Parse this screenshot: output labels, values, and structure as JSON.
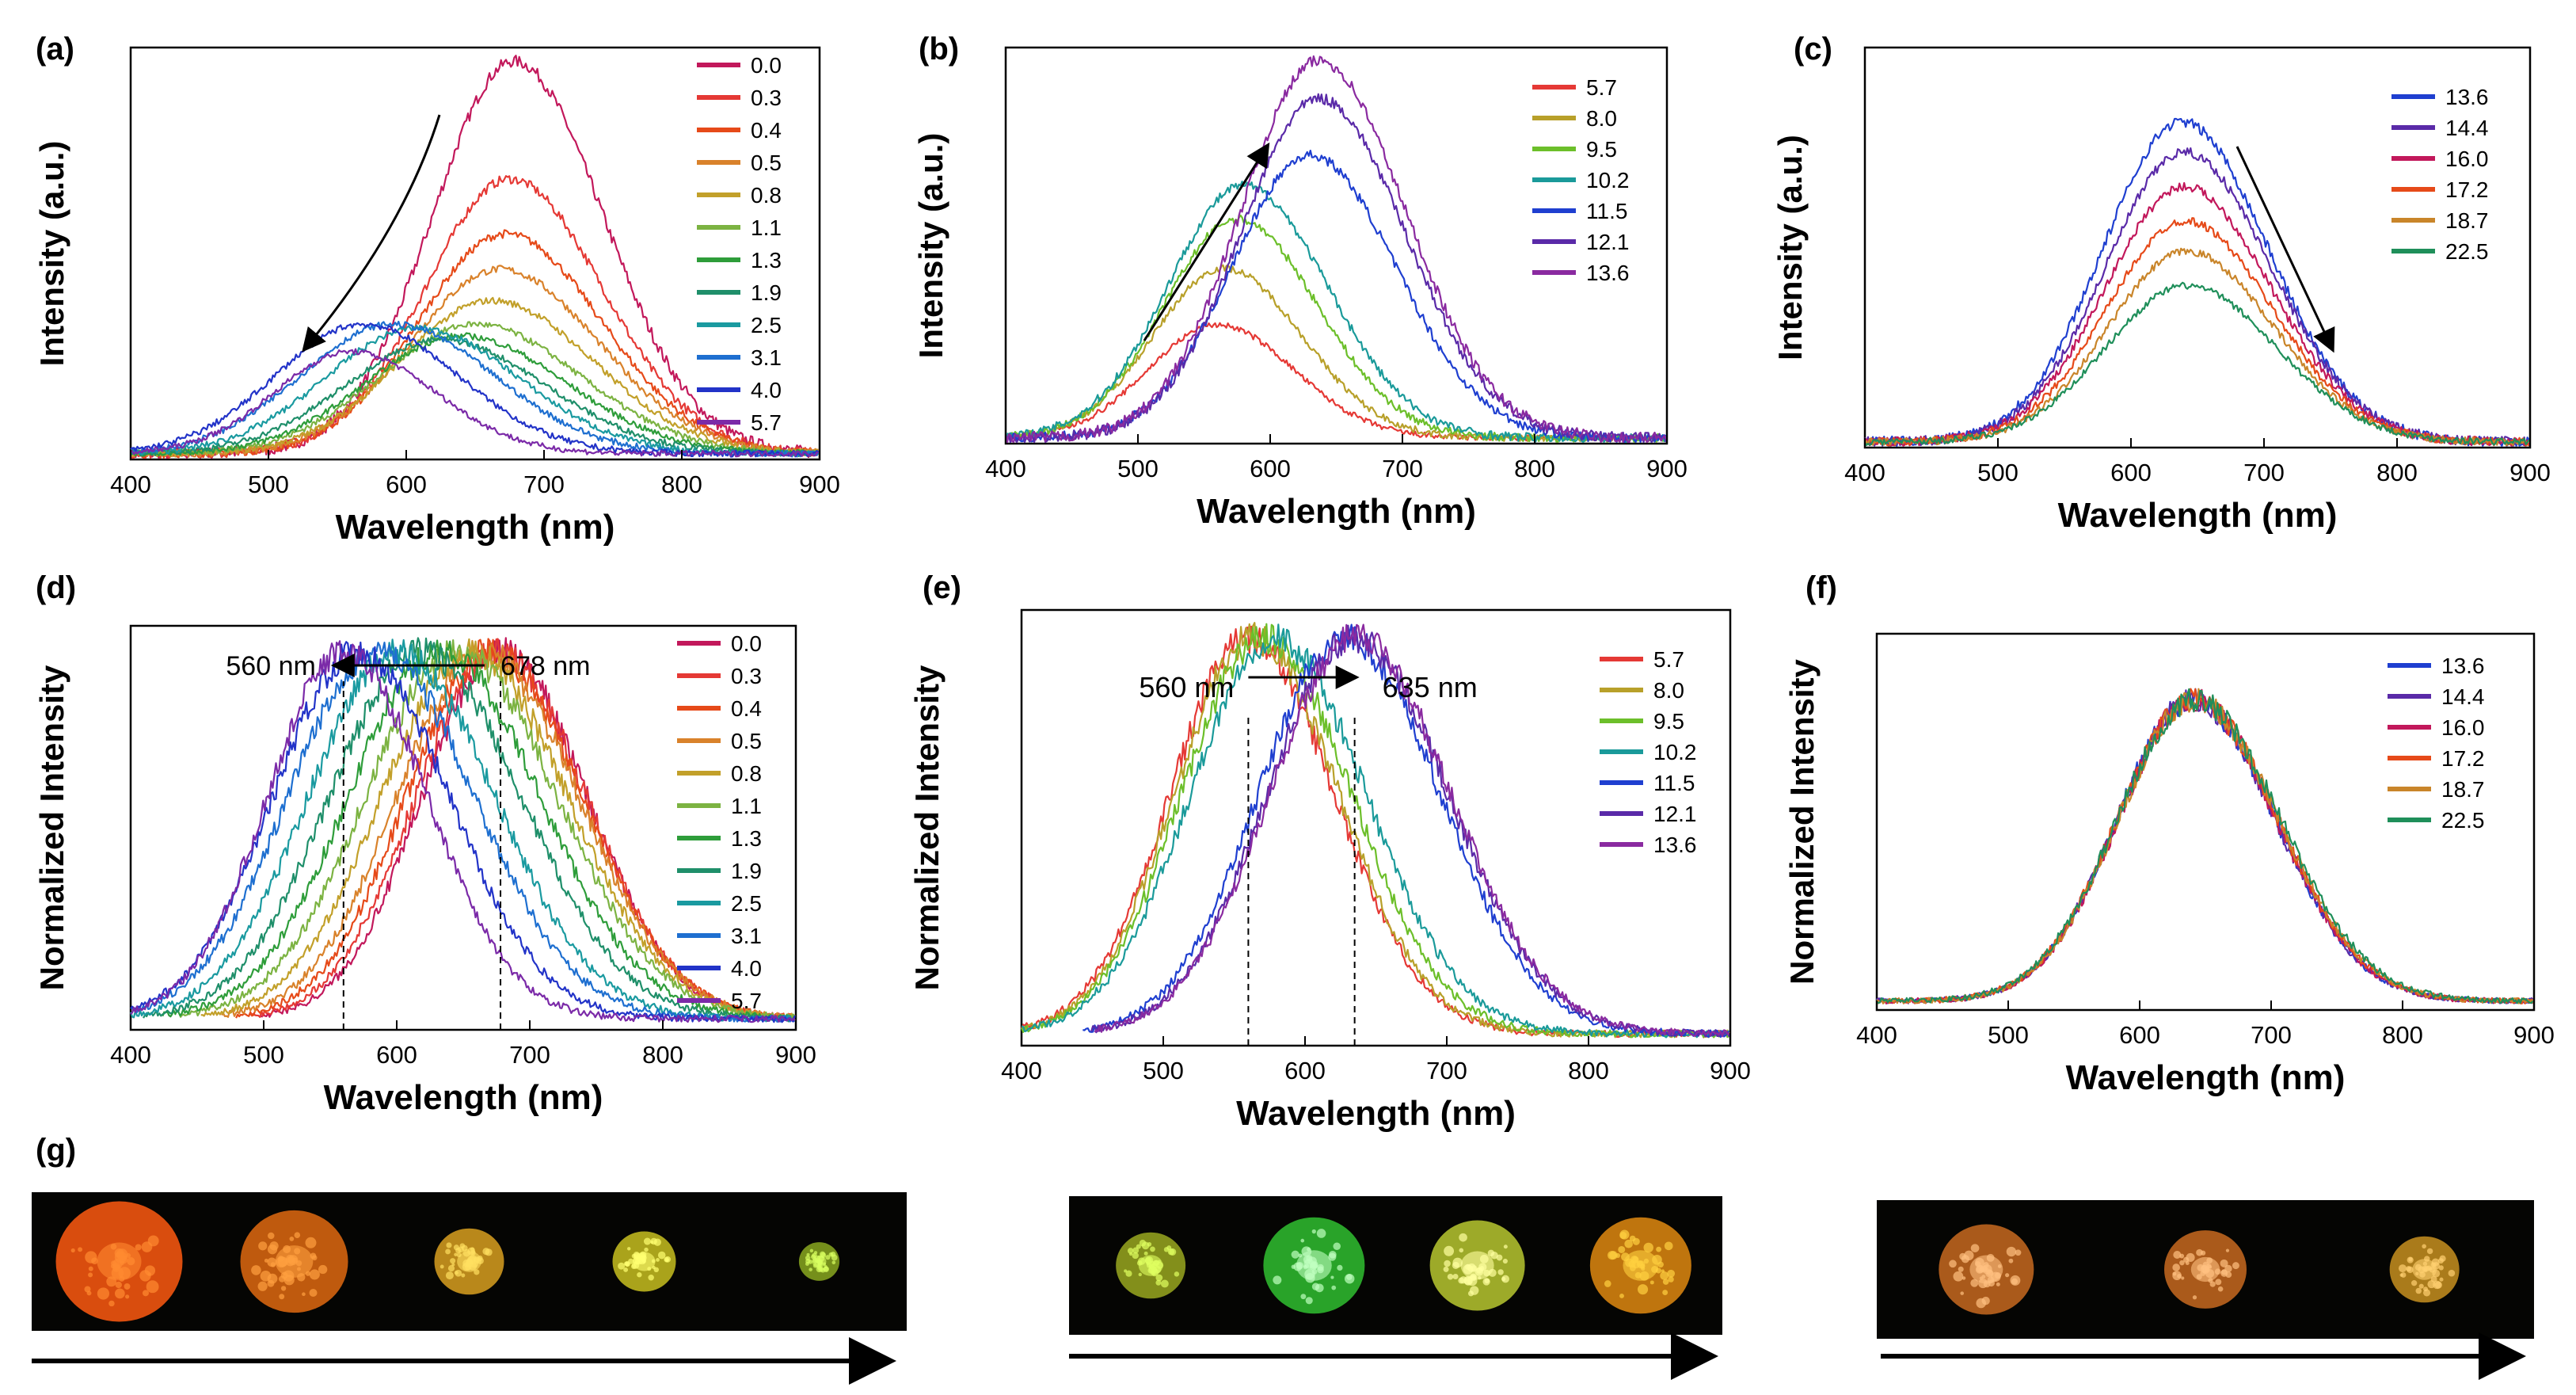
{
  "figure": {
    "panel_labels": [
      "(a)",
      "(b)",
      "(c)",
      "(d)",
      "(e)",
      "(f)",
      "(g)"
    ],
    "xlabel": "Wavelength (nm)"
  },
  "chart_data": [
    {
      "id": "a",
      "label": "(a)",
      "type": "line",
      "mode": "raw",
      "ylabel": "Intensity (a.u.)",
      "xlabel": "Wavelength (nm)",
      "xlim": [
        400,
        900
      ],
      "xticks": [
        400,
        500,
        600,
        700,
        800,
        900
      ],
      "ylim": [
        0,
        1.05
      ],
      "show_yticks": false,
      "legend_position": "top-right",
      "series": [
        {
          "name": "0.0",
          "color": "#c2185b",
          "peak": 678,
          "amp": 1.0,
          "width": 62
        },
        {
          "name": "0.3",
          "color": "#e53935",
          "peak": 675,
          "amp": 0.7,
          "width": 64
        },
        {
          "name": "0.4",
          "color": "#e64a19",
          "peak": 672,
          "amp": 0.56,
          "width": 66
        },
        {
          "name": "0.5",
          "color": "#d9822b",
          "peak": 668,
          "amp": 0.47,
          "width": 68
        },
        {
          "name": "0.8",
          "color": "#c2a02a",
          "peak": 662,
          "amp": 0.39,
          "width": 70
        },
        {
          "name": "1.1",
          "color": "#7cb342",
          "peak": 650,
          "amp": 0.33,
          "width": 72
        },
        {
          "name": "1.3",
          "color": "#2e9d3a",
          "peak": 640,
          "amp": 0.3,
          "width": 72
        },
        {
          "name": "1.9",
          "color": "#1f8f6a",
          "peak": 625,
          "amp": 0.29,
          "width": 72
        },
        {
          "name": "2.5",
          "color": "#1a9aa0",
          "peak": 608,
          "amp": 0.32,
          "width": 70
        },
        {
          "name": "3.1",
          "color": "#1e6fd0",
          "peak": 590,
          "amp": 0.33,
          "width": 70
        },
        {
          "name": "4.0",
          "color": "#2233c8",
          "peak": 568,
          "amp": 0.33,
          "width": 66
        },
        {
          "name": "5.7",
          "color": "#7b2aa8",
          "peak": 560,
          "amp": 0.26,
          "width": 58
        }
      ]
    },
    {
      "id": "b",
      "label": "(b)",
      "type": "line",
      "mode": "raw",
      "ylabel": "Intensity (a.u.)",
      "xlabel": "Wavelength (nm)",
      "xlim": [
        400,
        900
      ],
      "xticks": [
        400,
        500,
        600,
        700,
        800,
        900
      ],
      "ylim": [
        0,
        1.05
      ],
      "show_yticks": false,
      "legend_position": "top-right",
      "series": [
        {
          "name": "5.7",
          "color": "#e53935",
          "peak": 560,
          "amp": 0.3,
          "width": 55
        },
        {
          "name": "8.0",
          "color": "#b8a02a",
          "peak": 565,
          "amp": 0.45,
          "width": 56
        },
        {
          "name": "9.5",
          "color": "#6cbf2a",
          "peak": 575,
          "amp": 0.58,
          "width": 58
        },
        {
          "name": "10.2",
          "color": "#1a9a9a",
          "peak": 580,
          "amp": 0.67,
          "width": 60
        },
        {
          "name": "11.5",
          "color": "#1f3fd0",
          "peak": 630,
          "amp": 0.75,
          "width": 62
        },
        {
          "name": "12.1",
          "color": "#5a2aa8",
          "peak": 637,
          "amp": 0.9,
          "width": 62
        },
        {
          "name": "13.6",
          "color": "#8a2aa0",
          "peak": 637,
          "amp": 1.0,
          "width": 62
        }
      ]
    },
    {
      "id": "c",
      "label": "(c)",
      "type": "line",
      "mode": "raw",
      "ylabel": "Intensity (a.u.)",
      "xlabel": "Wavelength (nm)",
      "xlim": [
        400,
        900
      ],
      "xticks": [
        400,
        500,
        600,
        700,
        800,
        900
      ],
      "ylim": [
        0,
        1.05
      ],
      "show_yticks": false,
      "legend_position": "top-right",
      "series": [
        {
          "name": "13.6",
          "color": "#1f3fd0",
          "peak": 638,
          "amp": 0.84,
          "width": 62
        },
        {
          "name": "14.4",
          "color": "#5a2aa8",
          "peak": 640,
          "amp": 0.76,
          "width": 62
        },
        {
          "name": "16.0",
          "color": "#c2185b",
          "peak": 640,
          "amp": 0.67,
          "width": 62
        },
        {
          "name": "17.2",
          "color": "#e64a19",
          "peak": 641,
          "amp": 0.58,
          "width": 62
        },
        {
          "name": "18.7",
          "color": "#c9852a",
          "peak": 642,
          "amp": 0.5,
          "width": 62
        },
        {
          "name": "22.5",
          "color": "#1f8f5a",
          "peak": 642,
          "amp": 0.41,
          "width": 64
        }
      ]
    },
    {
      "id": "d",
      "label": "(d)",
      "type": "line",
      "mode": "normalized",
      "ylabel": "Normalized Intensity",
      "xlabel": "Wavelength (nm)",
      "xlim": [
        400,
        900
      ],
      "xticks": [
        400,
        500,
        600,
        700,
        800,
        900
      ],
      "ylim": [
        0,
        1.1
      ],
      "show_yticks": false,
      "legend_position": "top-right",
      "annotations": [
        {
          "text": "560 nm",
          "x": 560
        },
        {
          "text": "678 nm",
          "x": 678
        }
      ],
      "series": [
        {
          "name": "0.0",
          "color": "#c2185b",
          "peak": 678,
          "amp": 1.0,
          "width": 62
        },
        {
          "name": "0.3",
          "color": "#e53935",
          "peak": 675,
          "amp": 1.0,
          "width": 64
        },
        {
          "name": "0.4",
          "color": "#e64a19",
          "peak": 670,
          "amp": 1.0,
          "width": 66
        },
        {
          "name": "0.5",
          "color": "#d9822b",
          "peak": 665,
          "amp": 1.0,
          "width": 68
        },
        {
          "name": "0.8",
          "color": "#c2a02a",
          "peak": 655,
          "amp": 1.0,
          "width": 70
        },
        {
          "name": "1.1",
          "color": "#7cb342",
          "peak": 645,
          "amp": 1.0,
          "width": 72
        },
        {
          "name": "1.3",
          "color": "#2e9d3a",
          "peak": 632,
          "amp": 1.0,
          "width": 72
        },
        {
          "name": "1.9",
          "color": "#1f8f6a",
          "peak": 618,
          "amp": 1.0,
          "width": 72
        },
        {
          "name": "2.5",
          "color": "#1a9aa0",
          "peak": 600,
          "amp": 1.0,
          "width": 70
        },
        {
          "name": "3.1",
          "color": "#1e6fd0",
          "peak": 585,
          "amp": 1.0,
          "width": 70
        },
        {
          "name": "4.0",
          "color": "#2233c8",
          "peak": 570,
          "amp": 1.0,
          "width": 66
        },
        {
          "name": "5.7",
          "color": "#7b2aa8",
          "peak": 560,
          "amp": 1.0,
          "width": 60
        }
      ]
    },
    {
      "id": "e",
      "label": "(e)",
      "type": "line",
      "mode": "normalized",
      "ylabel": "Normalized Intensity",
      "xlabel": "Wavelength (nm)",
      "xlim": [
        400,
        900
      ],
      "xticks": [
        400,
        500,
        600,
        700,
        800,
        900
      ],
      "ylim": [
        0,
        1.1
      ],
      "show_yticks": false,
      "legend_position": "top-right",
      "annotations": [
        {
          "text": "560 nm",
          "x": 560
        },
        {
          "text": "635 nm",
          "x": 635
        }
      ],
      "series": [
        {
          "name": "5.7",
          "color": "#e53935",
          "peak": 560,
          "amp": 1.0,
          "width": 58
        },
        {
          "name": "8.0",
          "color": "#b8a02a",
          "peak": 563,
          "amp": 1.0,
          "width": 58
        },
        {
          "name": "9.5",
          "color": "#6cbf2a",
          "peak": 570,
          "amp": 1.0,
          "width": 60
        },
        {
          "name": "10.2",
          "color": "#1a9a9a",
          "peak": 578,
          "amp": 1.0,
          "width": 62
        },
        {
          "name": "11.5",
          "color": "#1f3fd0",
          "peak": 628,
          "amp": 1.0,
          "width": 64
        },
        {
          "name": "12.1",
          "color": "#5a2aa8",
          "peak": 634,
          "amp": 1.0,
          "width": 64
        },
        {
          "name": "13.6",
          "color": "#8a2aa0",
          "peak": 636,
          "amp": 1.0,
          "width": 64
        }
      ]
    },
    {
      "id": "f",
      "label": "(f)",
      "type": "line",
      "mode": "normalized",
      "ylabel": "Normalized Intensity",
      "xlabel": "Wavelength (nm)",
      "xlim": [
        400,
        900
      ],
      "xticks": [
        400,
        500,
        600,
        700,
        800,
        900
      ],
      "ylim": [
        0,
        1.25
      ],
      "show_yticks": false,
      "legend_position": "top-right",
      "series": [
        {
          "name": "13.6",
          "color": "#1f3fd0",
          "peak": 640,
          "amp": 1.0,
          "width": 60
        },
        {
          "name": "14.4",
          "color": "#5a2aa8",
          "peak": 640,
          "amp": 1.0,
          "width": 60
        },
        {
          "name": "16.0",
          "color": "#c2185b",
          "peak": 641,
          "amp": 1.0,
          "width": 60
        },
        {
          "name": "17.2",
          "color": "#e64a19",
          "peak": 641,
          "amp": 1.0,
          "width": 61
        },
        {
          "name": "18.7",
          "color": "#c9852a",
          "peak": 642,
          "amp": 1.0,
          "width": 61
        },
        {
          "name": "22.5",
          "color": "#1f8f5a",
          "peak": 642,
          "amp": 1.0,
          "width": 62
        }
      ]
    }
  ],
  "micrographs": [
    {
      "group": "left",
      "spots": [
        {
          "color": "#ff5a10",
          "core": "#ff8a30",
          "size": 1.0
        },
        {
          "color": "#e06a10",
          "core": "#ffa040",
          "size": 0.85
        },
        {
          "color": "#d9a020",
          "core": "#ffe060",
          "size": 0.55
        },
        {
          "color": "#c8c020",
          "core": "#ffff70",
          "size": 0.5
        },
        {
          "color": "#8aa820",
          "core": "#d8ff60",
          "size": 0.32
        }
      ]
    },
    {
      "group": "middle",
      "spots": [
        {
          "color": "#9aa820",
          "core": "#e0ff60",
          "size": 0.55
        },
        {
          "color": "#30c030",
          "core": "#c0ffc0",
          "size": 0.8
        },
        {
          "color": "#b8c830",
          "core": "#ffffa0",
          "size": 0.75
        },
        {
          "color": "#e08a10",
          "core": "#ffd040",
          "size": 0.8
        }
      ]
    },
    {
      "group": "right",
      "spots": [
        {
          "color": "#c86a20",
          "core": "#ffc080",
          "size": 0.75
        },
        {
          "color": "#c86a20",
          "core": "#ffc080",
          "size": 0.65
        },
        {
          "color": "#c89020",
          "core": "#ffd070",
          "size": 0.55
        }
      ]
    }
  ]
}
